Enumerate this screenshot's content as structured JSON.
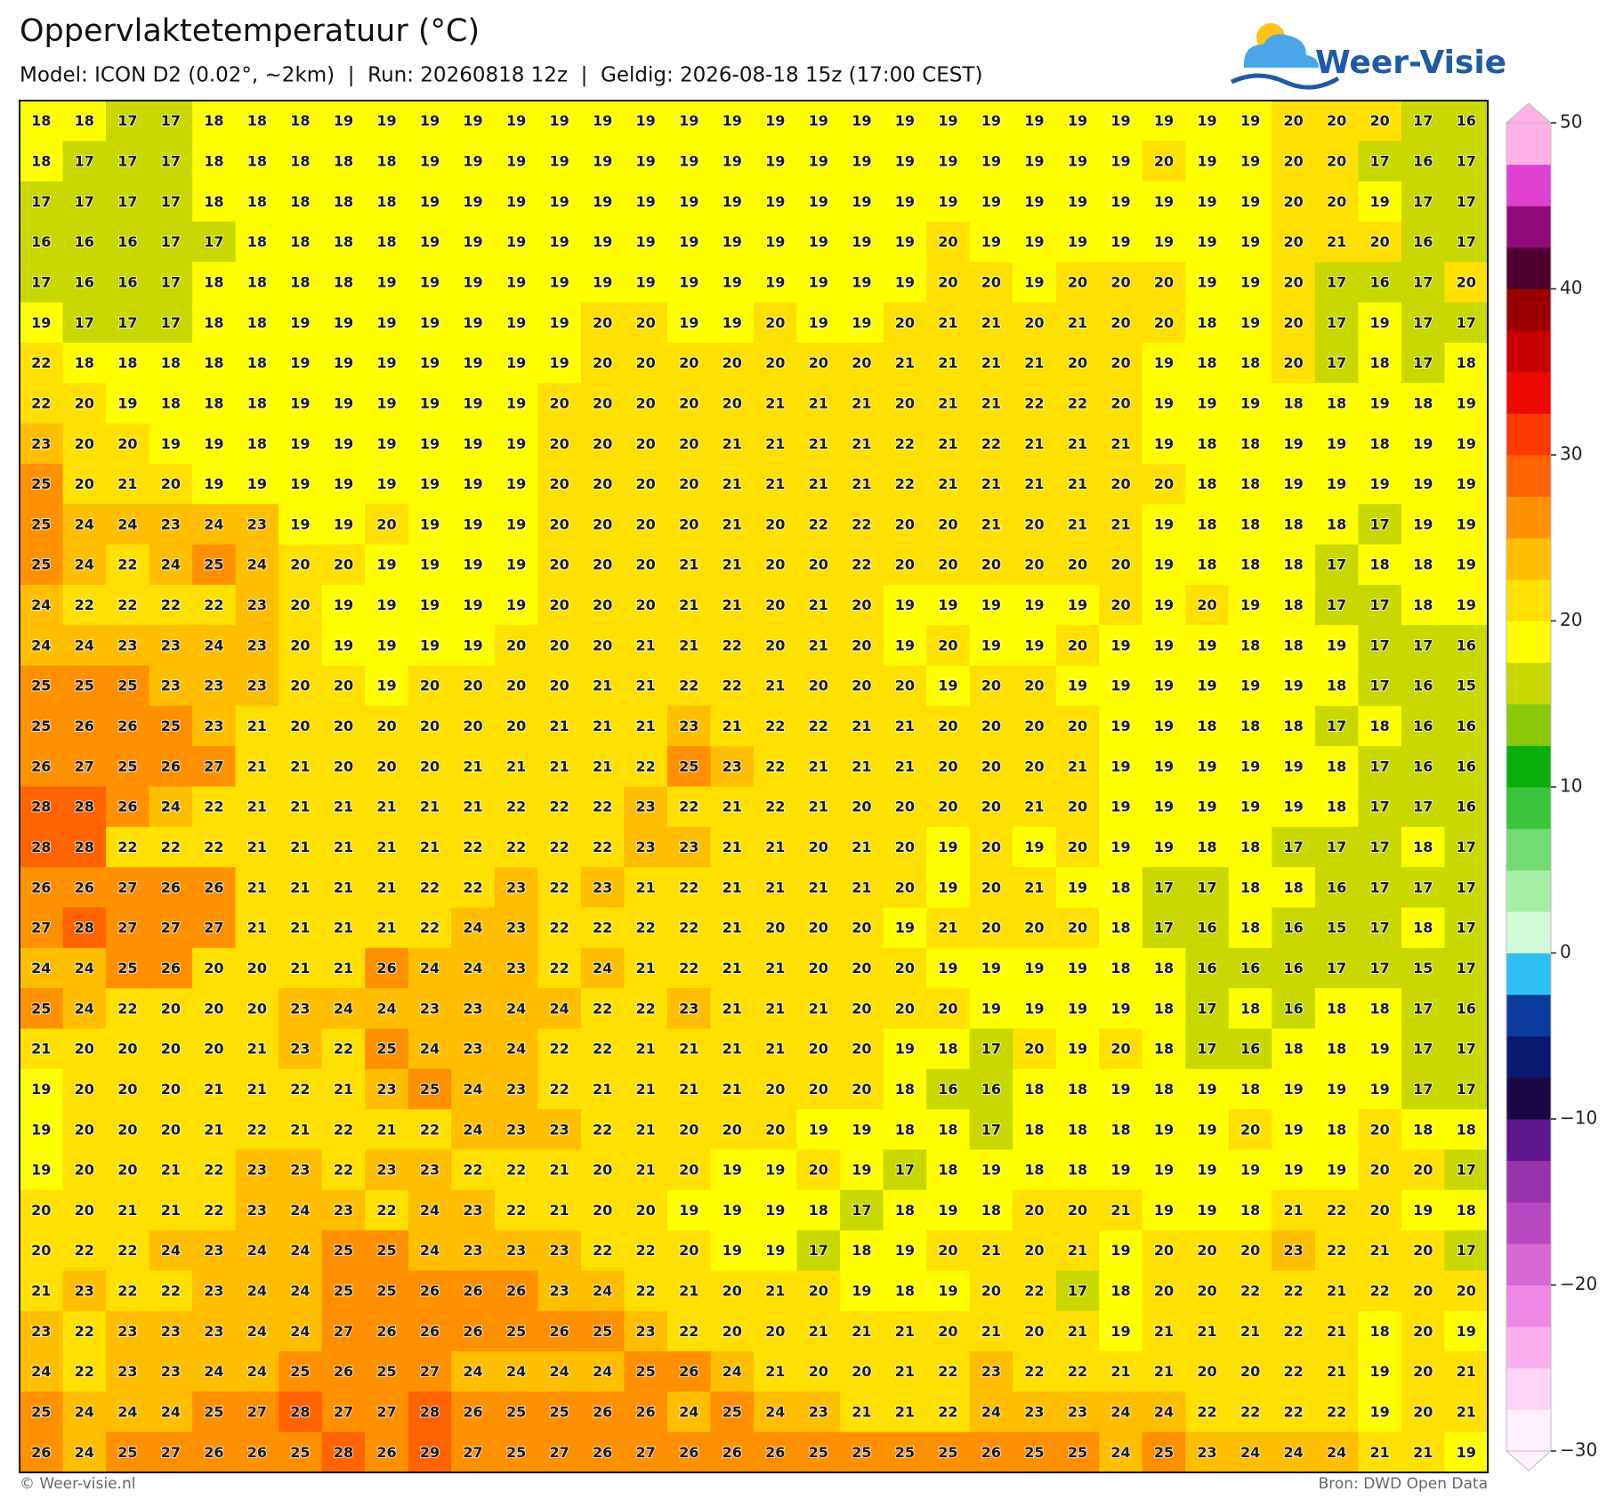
{
  "chart_data": {
    "type": "grid",
    "title": "Oppervlaktetemperatuur (°C)",
    "subtitle": "Model: ICON D2 (0.02°, ~2km)  |  Run: 20260818 12z  |  Geldig: 2026-08-18 15z (17:00 CEST)",
    "logo": "Weer-Visie",
    "credit": "© Weer-visie.nl",
    "source": "Bron: DWD Open Data",
    "values": [
      [
        18,
        18,
        17,
        17,
        18,
        18,
        18,
        19,
        19,
        19,
        19,
        19,
        19,
        19,
        19,
        19,
        19,
        19,
        19,
        19,
        19,
        19,
        19,
        19,
        19,
        19,
        19,
        19,
        19,
        20,
        20,
        20,
        17,
        16
      ],
      [
        18,
        17,
        17,
        17,
        18,
        18,
        18,
        18,
        18,
        19,
        19,
        19,
        19,
        19,
        19,
        19,
        19,
        19,
        19,
        19,
        19,
        19,
        19,
        19,
        19,
        19,
        20,
        19,
        19,
        20,
        20,
        17,
        16,
        17
      ],
      [
        17,
        17,
        17,
        17,
        18,
        18,
        18,
        18,
        18,
        19,
        19,
        19,
        19,
        19,
        19,
        19,
        19,
        19,
        19,
        19,
        19,
        19,
        19,
        19,
        19,
        19,
        19,
        19,
        19,
        20,
        20,
        19,
        17,
        17
      ],
      [
        16,
        16,
        16,
        17,
        17,
        18,
        18,
        18,
        18,
        19,
        19,
        19,
        19,
        19,
        19,
        19,
        19,
        19,
        19,
        19,
        19,
        20,
        19,
        19,
        19,
        19,
        19,
        19,
        19,
        20,
        21,
        20,
        16,
        17
      ],
      [
        17,
        16,
        16,
        17,
        18,
        18,
        18,
        18,
        19,
        19,
        19,
        19,
        19,
        19,
        19,
        19,
        19,
        19,
        19,
        19,
        19,
        20,
        20,
        19,
        20,
        20,
        20,
        19,
        19,
        20,
        17,
        16,
        17,
        20
      ],
      [
        19,
        17,
        17,
        17,
        18,
        18,
        19,
        19,
        19,
        19,
        19,
        19,
        19,
        20,
        20,
        19,
        19,
        20,
        19,
        19,
        20,
        21,
        21,
        20,
        21,
        20,
        20,
        18,
        19,
        20,
        17,
        19,
        17,
        17
      ],
      [
        22,
        18,
        18,
        18,
        18,
        18,
        19,
        19,
        19,
        19,
        19,
        19,
        19,
        20,
        20,
        20,
        20,
        20,
        20,
        20,
        21,
        21,
        21,
        21,
        20,
        20,
        19,
        18,
        18,
        20,
        17,
        18,
        17,
        18
      ],
      [
        22,
        20,
        19,
        18,
        18,
        18,
        19,
        19,
        19,
        19,
        19,
        19,
        20,
        20,
        20,
        20,
        20,
        21,
        21,
        21,
        20,
        21,
        21,
        22,
        22,
        20,
        19,
        19,
        19,
        18,
        18,
        19,
        18,
        19
      ],
      [
        23,
        20,
        20,
        19,
        19,
        18,
        19,
        19,
        19,
        19,
        19,
        19,
        20,
        20,
        20,
        20,
        21,
        21,
        21,
        21,
        22,
        21,
        22,
        21,
        21,
        21,
        19,
        18,
        18,
        19,
        19,
        18,
        19,
        19
      ],
      [
        25,
        20,
        21,
        20,
        19,
        19,
        19,
        19,
        19,
        19,
        19,
        19,
        20,
        20,
        20,
        20,
        21,
        21,
        21,
        21,
        22,
        21,
        21,
        21,
        21,
        20,
        20,
        18,
        18,
        19,
        19,
        19,
        19,
        19
      ],
      [
        25,
        24,
        24,
        23,
        24,
        23,
        19,
        19,
        20,
        19,
        19,
        19,
        20,
        20,
        20,
        20,
        21,
        20,
        22,
        22,
        20,
        20,
        21,
        20,
        21,
        21,
        19,
        18,
        18,
        18,
        18,
        17,
        19,
        19
      ],
      [
        25,
        24,
        22,
        24,
        25,
        24,
        20,
        20,
        19,
        19,
        19,
        19,
        20,
        20,
        20,
        21,
        21,
        20,
        20,
        22,
        20,
        20,
        20,
        20,
        20,
        20,
        19,
        18,
        18,
        18,
        17,
        18,
        18,
        19
      ],
      [
        24,
        22,
        22,
        22,
        22,
        23,
        20,
        19,
        19,
        19,
        19,
        19,
        20,
        20,
        20,
        21,
        21,
        20,
        21,
        20,
        19,
        19,
        19,
        19,
        19,
        20,
        19,
        20,
        19,
        18,
        17,
        17,
        18,
        19
      ],
      [
        24,
        24,
        23,
        23,
        24,
        23,
        20,
        19,
        19,
        19,
        19,
        20,
        20,
        20,
        21,
        21,
        22,
        20,
        21,
        20,
        19,
        20,
        19,
        19,
        20,
        19,
        19,
        19,
        18,
        18,
        19,
        17,
        17,
        16
      ],
      [
        25,
        25,
        25,
        23,
        23,
        23,
        20,
        20,
        19,
        20,
        20,
        20,
        20,
        21,
        21,
        22,
        22,
        21,
        20,
        20,
        20,
        19,
        20,
        20,
        19,
        19,
        19,
        19,
        19,
        19,
        18,
        17,
        16,
        15
      ],
      [
        25,
        26,
        26,
        25,
        23,
        21,
        20,
        20,
        20,
        20,
        20,
        20,
        21,
        21,
        21,
        23,
        21,
        22,
        22,
        21,
        21,
        20,
        20,
        20,
        20,
        19,
        19,
        18,
        18,
        18,
        17,
        18,
        16,
        16
      ],
      [
        26,
        27,
        25,
        26,
        27,
        21,
        21,
        20,
        20,
        20,
        21,
        21,
        21,
        21,
        22,
        25,
        23,
        22,
        21,
        21,
        21,
        20,
        20,
        20,
        21,
        19,
        19,
        19,
        19,
        19,
        18,
        17,
        16,
        16
      ],
      [
        28,
        28,
        26,
        24,
        22,
        21,
        21,
        21,
        21,
        21,
        21,
        22,
        22,
        22,
        23,
        22,
        21,
        22,
        21,
        20,
        20,
        20,
        20,
        21,
        20,
        19,
        19,
        19,
        19,
        19,
        18,
        17,
        17,
        16
      ],
      [
        28,
        28,
        22,
        22,
        22,
        21,
        21,
        21,
        21,
        21,
        22,
        22,
        22,
        22,
        23,
        23,
        21,
        21,
        20,
        21,
        20,
        19,
        20,
        19,
        20,
        19,
        19,
        18,
        18,
        17,
        17,
        17,
        18,
        17
      ],
      [
        26,
        26,
        27,
        26,
        26,
        21,
        21,
        21,
        21,
        22,
        22,
        23,
        22,
        23,
        21,
        22,
        21,
        21,
        21,
        21,
        20,
        19,
        20,
        21,
        19,
        18,
        17,
        17,
        18,
        18,
        16,
        17,
        17,
        17
      ],
      [
        27,
        28,
        27,
        27,
        27,
        21,
        21,
        21,
        21,
        22,
        24,
        23,
        22,
        22,
        22,
        22,
        21,
        20,
        20,
        20,
        19,
        21,
        20,
        20,
        20,
        18,
        17,
        16,
        18,
        16,
        15,
        17,
        18,
        17
      ],
      [
        24,
        24,
        25,
        26,
        20,
        20,
        21,
        21,
        26,
        24,
        24,
        23,
        22,
        24,
        21,
        22,
        21,
        21,
        20,
        20,
        20,
        19,
        19,
        19,
        19,
        18,
        18,
        16,
        16,
        16,
        17,
        17,
        15,
        17
      ],
      [
        25,
        24,
        22,
        20,
        20,
        20,
        23,
        24,
        24,
        23,
        23,
        24,
        24,
        22,
        22,
        23,
        21,
        21,
        21,
        20,
        20,
        20,
        19,
        19,
        19,
        19,
        18,
        17,
        18,
        16,
        18,
        18,
        17,
        16
      ],
      [
        21,
        20,
        20,
        20,
        20,
        21,
        23,
        22,
        25,
        24,
        23,
        24,
        22,
        22,
        21,
        21,
        21,
        21,
        20,
        20,
        19,
        18,
        17,
        20,
        19,
        20,
        18,
        17,
        16,
        18,
        18,
        19,
        17,
        17
      ],
      [
        19,
        20,
        20,
        20,
        21,
        21,
        22,
        21,
        23,
        25,
        24,
        23,
        22,
        21,
        21,
        21,
        21,
        20,
        20,
        20,
        18,
        16,
        16,
        18,
        18,
        19,
        18,
        19,
        18,
        19,
        19,
        19,
        17,
        17
      ],
      [
        19,
        20,
        20,
        20,
        21,
        22,
        21,
        22,
        21,
        22,
        24,
        23,
        23,
        22,
        21,
        20,
        20,
        20,
        19,
        19,
        18,
        18,
        17,
        18,
        18,
        18,
        19,
        19,
        20,
        19,
        18,
        20,
        18,
        18
      ],
      [
        19,
        20,
        20,
        21,
        22,
        23,
        23,
        22,
        23,
        23,
        22,
        22,
        21,
        20,
        21,
        20,
        19,
        19,
        20,
        19,
        17,
        18,
        19,
        18,
        18,
        19,
        19,
        19,
        19,
        19,
        19,
        20,
        20,
        17
      ],
      [
        20,
        20,
        21,
        21,
        22,
        23,
        24,
        23,
        22,
        24,
        23,
        22,
        21,
        20,
        20,
        19,
        19,
        19,
        18,
        17,
        18,
        19,
        18,
        20,
        20,
        21,
        19,
        19,
        18,
        21,
        22,
        20,
        19,
        18
      ],
      [
        20,
        22,
        22,
        24,
        23,
        24,
        24,
        25,
        25,
        24,
        23,
        23,
        23,
        22,
        22,
        20,
        19,
        19,
        17,
        18,
        19,
        20,
        21,
        20,
        21,
        19,
        20,
        20,
        20,
        23,
        22,
        21,
        20,
        17
      ],
      [
        21,
        23,
        22,
        22,
        23,
        24,
        24,
        25,
        25,
        26,
        26,
        26,
        23,
        24,
        22,
        21,
        20,
        21,
        20,
        19,
        18,
        19,
        20,
        22,
        17,
        18,
        20,
        20,
        22,
        22,
        21,
        22,
        20,
        20
      ],
      [
        23,
        22,
        23,
        23,
        23,
        24,
        24,
        27,
        26,
        26,
        26,
        25,
        26,
        25,
        23,
        22,
        20,
        20,
        21,
        21,
        21,
        20,
        21,
        20,
        21,
        19,
        21,
        21,
        21,
        22,
        21,
        18,
        20,
        19
      ],
      [
        24,
        22,
        23,
        23,
        24,
        24,
        25,
        26,
        25,
        27,
        24,
        24,
        24,
        24,
        25,
        26,
        24,
        21,
        20,
        20,
        21,
        22,
        23,
        22,
        22,
        21,
        21,
        20,
        20,
        22,
        21,
        19,
        20,
        21
      ],
      [
        25,
        24,
        24,
        24,
        25,
        27,
        28,
        27,
        27,
        28,
        26,
        25,
        25,
        26,
        26,
        24,
        25,
        24,
        23,
        21,
        21,
        22,
        24,
        23,
        23,
        24,
        24,
        22,
        22,
        22,
        22,
        19,
        20,
        21
      ],
      [
        26,
        24,
        25,
        27,
        26,
        26,
        25,
        28,
        26,
        29,
        27,
        25,
        27,
        26,
        27,
        26,
        26,
        26,
        25,
        25,
        25,
        25,
        26,
        25,
        25,
        24,
        25,
        23,
        24,
        24,
        24,
        21,
        21,
        19
      ]
    ],
    "clim": [
      -30,
      50
    ],
    "cticks": [
      {
        "value": -30,
        "label": "−30"
      },
      {
        "value": -20,
        "label": "−20"
      },
      {
        "value": -10,
        "label": "−10"
      },
      0,
      10,
      20,
      30,
      40,
      50
    ],
    "colors": [
      "#fff0fb",
      "#ffd5f5",
      "#fbb0ee",
      "#ee88e4",
      "#d868d4",
      "#b848bf",
      "#9632aa",
      "#5e168c",
      "#1a0845",
      "#0a1870",
      "#0a3c9e",
      "#30c0f5",
      "#d4fbd8",
      "#a6eea6",
      "#72da72",
      "#3cc43c",
      "#08b008",
      "#8cc80a",
      "#c8d800",
      "#ffff00",
      "#ffe000",
      "#ffbe00",
      "#ff9000",
      "#ff6400",
      "#ff3a00",
      "#ee0a00",
      "#c80000",
      "#9a0000",
      "#500030",
      "#900a78",
      "#e040d0",
      "#ffb0e6"
    ]
  }
}
